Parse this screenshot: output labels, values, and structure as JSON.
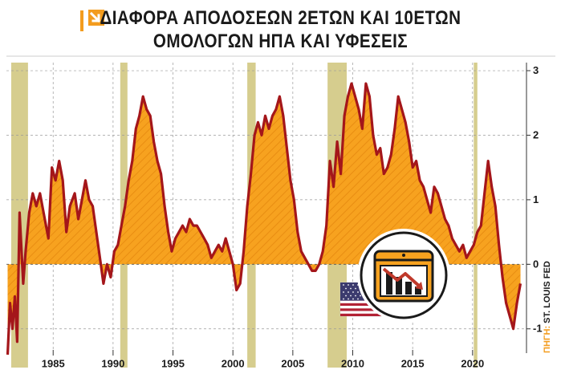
{
  "title": {
    "line1": "ΔΙΑΦΟΡΑ ΑΠΟΔΟΣΕΩΝ 2ΕΤΩΝ ΚΑΙ 10ΕΤΩΝ",
    "line2": "ΟΜΟΛΟΓΩΝ ΗΠΑ ΚΑΙ ΥΦΕΣΕΙΣ"
  },
  "source": {
    "label": "ΠΗΓΗ:",
    "value": "ST. LOUIS FED"
  },
  "colors": {
    "area_fill": "#f7a21f",
    "line": "#a4161a",
    "recession": "#d6cd8e",
    "grid": "#9a9a9a",
    "accent": "#f39c1e"
  },
  "icons": [
    "arrow-down-icon",
    "chart-down-icon",
    "us-flag-icon"
  ],
  "chart_data": {
    "type": "area",
    "xlim": [
      1981.1,
      2024.5
    ],
    "ylim": [
      -1.6,
      3.1
    ],
    "x_ticks": [
      1985,
      1990,
      1995,
      2000,
      2005,
      2010,
      2015,
      2020
    ],
    "y_ticks": [
      3,
      2,
      1,
      0,
      -1
    ],
    "grid": "vertical dashed at x ticks, horizontal dashed at y ticks",
    "recessions": [
      [
        1981.5,
        1982.9
      ],
      [
        1990.6,
        1991.2
      ],
      [
        2001.2,
        2001.9
      ],
      [
        2007.9,
        2009.5
      ],
      [
        2020.1,
        2020.4
      ]
    ],
    "series": [
      {
        "points": [
          [
            1981.2,
            -1.4
          ],
          [
            1981.4,
            -0.6
          ],
          [
            1981.6,
            -1.0
          ],
          [
            1981.8,
            -0.5
          ],
          [
            1982.0,
            -1.2
          ],
          [
            1982.2,
            0.8
          ],
          [
            1982.5,
            -0.3
          ],
          [
            1982.7,
            0.2
          ],
          [
            1983.0,
            0.8
          ],
          [
            1983.3,
            1.1
          ],
          [
            1983.6,
            0.9
          ],
          [
            1983.9,
            1.1
          ],
          [
            1984.2,
            0.8
          ],
          [
            1984.6,
            0.4
          ],
          [
            1984.9,
            1.5
          ],
          [
            1985.2,
            1.3
          ],
          [
            1985.5,
            1.6
          ],
          [
            1985.8,
            1.3
          ],
          [
            1986.1,
            0.5
          ],
          [
            1986.4,
            0.9
          ],
          [
            1986.8,
            1.1
          ],
          [
            1987.1,
            0.7
          ],
          [
            1987.4,
            1.0
          ],
          [
            1987.7,
            1.3
          ],
          [
            1988.0,
            1.0
          ],
          [
            1988.3,
            0.9
          ],
          [
            1988.6,
            0.5
          ],
          [
            1988.9,
            0.1
          ],
          [
            1989.2,
            -0.3
          ],
          [
            1989.5,
            0.0
          ],
          [
            1989.8,
            -0.2
          ],
          [
            1990.1,
            0.2
          ],
          [
            1990.4,
            0.3
          ],
          [
            1990.7,
            0.6
          ],
          [
            1991.0,
            0.9
          ],
          [
            1991.3,
            1.3
          ],
          [
            1991.6,
            1.6
          ],
          [
            1991.9,
            2.1
          ],
          [
            1992.2,
            2.3
          ],
          [
            1992.5,
            2.6
          ],
          [
            1992.8,
            2.4
          ],
          [
            1993.1,
            2.3
          ],
          [
            1993.4,
            1.9
          ],
          [
            1993.7,
            1.6
          ],
          [
            1994.0,
            1.4
          ],
          [
            1994.3,
            0.9
          ],
          [
            1994.6,
            0.5
          ],
          [
            1994.9,
            0.2
          ],
          [
            1995.2,
            0.4
          ],
          [
            1995.5,
            0.5
          ],
          [
            1995.8,
            0.6
          ],
          [
            1996.1,
            0.5
          ],
          [
            1996.4,
            0.7
          ],
          [
            1996.7,
            0.6
          ],
          [
            1997.0,
            0.6
          ],
          [
            1997.3,
            0.5
          ],
          [
            1997.6,
            0.4
          ],
          [
            1997.9,
            0.3
          ],
          [
            1998.2,
            0.1
          ],
          [
            1998.5,
            0.2
          ],
          [
            1998.8,
            0.3
          ],
          [
            1999.1,
            0.2
          ],
          [
            1999.4,
            0.4
          ],
          [
            1999.7,
            0.2
          ],
          [
            2000.0,
            0.0
          ],
          [
            2000.3,
            -0.4
          ],
          [
            2000.6,
            -0.3
          ],
          [
            2000.9,
            0.2
          ],
          [
            2001.2,
            0.9
          ],
          [
            2001.5,
            1.4
          ],
          [
            2001.8,
            2.0
          ],
          [
            2002.1,
            2.2
          ],
          [
            2002.4,
            2.0
          ],
          [
            2002.7,
            2.3
          ],
          [
            2003.0,
            2.1
          ],
          [
            2003.3,
            2.3
          ],
          [
            2003.6,
            2.4
          ],
          [
            2003.9,
            2.6
          ],
          [
            2004.2,
            2.3
          ],
          [
            2004.5,
            1.8
          ],
          [
            2004.8,
            1.3
          ],
          [
            2005.1,
            1.0
          ],
          [
            2005.4,
            0.5
          ],
          [
            2005.7,
            0.2
          ],
          [
            2006.0,
            0.1
          ],
          [
            2006.3,
            0.0
          ],
          [
            2006.6,
            -0.1
          ],
          [
            2006.9,
            -0.1
          ],
          [
            2007.2,
            0.0
          ],
          [
            2007.5,
            0.2
          ],
          [
            2007.8,
            0.6
          ],
          [
            2008.1,
            1.6
          ],
          [
            2008.4,
            1.2
          ],
          [
            2008.7,
            1.9
          ],
          [
            2009.0,
            1.4
          ],
          [
            2009.3,
            2.3
          ],
          [
            2009.6,
            2.6
          ],
          [
            2009.9,
            2.8
          ],
          [
            2010.2,
            2.6
          ],
          [
            2010.5,
            2.4
          ],
          [
            2010.8,
            2.1
          ],
          [
            2011.1,
            2.8
          ],
          [
            2011.4,
            2.6
          ],
          [
            2011.7,
            2.0
          ],
          [
            2012.0,
            1.7
          ],
          [
            2012.3,
            1.8
          ],
          [
            2012.6,
            1.4
          ],
          [
            2012.9,
            1.5
          ],
          [
            2013.2,
            1.7
          ],
          [
            2013.5,
            2.1
          ],
          [
            2013.8,
            2.6
          ],
          [
            2014.1,
            2.4
          ],
          [
            2014.4,
            2.2
          ],
          [
            2014.7,
            1.9
          ],
          [
            2015.0,
            1.5
          ],
          [
            2015.3,
            1.6
          ],
          [
            2015.6,
            1.3
          ],
          [
            2015.9,
            1.2
          ],
          [
            2016.2,
            1.0
          ],
          [
            2016.5,
            0.8
          ],
          [
            2016.8,
            1.2
          ],
          [
            2017.1,
            1.1
          ],
          [
            2017.4,
            0.9
          ],
          [
            2017.7,
            0.7
          ],
          [
            2018.0,
            0.6
          ],
          [
            2018.3,
            0.4
          ],
          [
            2018.6,
            0.3
          ],
          [
            2018.9,
            0.2
          ],
          [
            2019.2,
            0.3
          ],
          [
            2019.5,
            0.1
          ],
          [
            2019.8,
            0.2
          ],
          [
            2020.1,
            0.3
          ],
          [
            2020.4,
            0.5
          ],
          [
            2020.7,
            0.6
          ],
          [
            2021.0,
            1.1
          ],
          [
            2021.3,
            1.6
          ],
          [
            2021.6,
            1.2
          ],
          [
            2021.9,
            0.9
          ],
          [
            2022.2,
            0.3
          ],
          [
            2022.5,
            -0.2
          ],
          [
            2022.8,
            -0.6
          ],
          [
            2023.1,
            -0.8
          ],
          [
            2023.4,
            -1.0
          ],
          [
            2023.7,
            -0.6
          ],
          [
            2024.0,
            -0.3
          ]
        ]
      }
    ]
  }
}
